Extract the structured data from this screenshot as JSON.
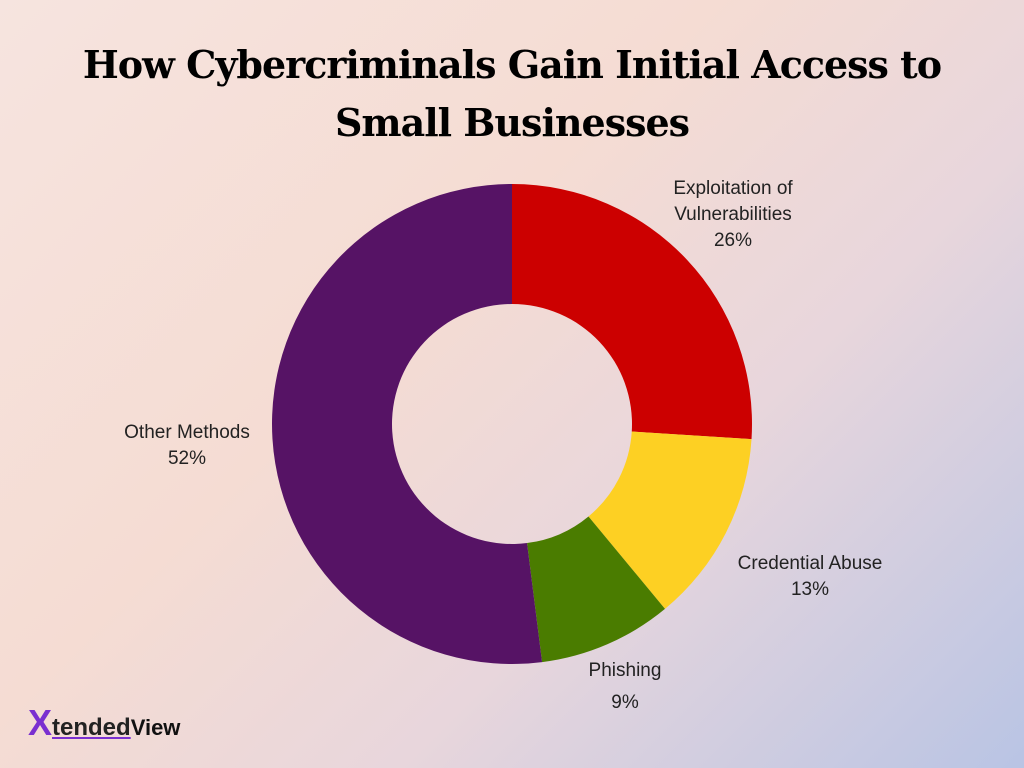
{
  "chart_data": {
    "type": "pie",
    "title": "How Cybercriminals Gain Initial Access to Small Businesses",
    "categories": [
      "Exploitation of Vulnerabilities",
      "Credential Abuse",
      "Phishing",
      "Other Methods"
    ],
    "values": [
      26,
      13,
      9,
      52
    ],
    "value_labels": [
      "26%",
      "13%",
      "9%",
      "52%"
    ],
    "colors": [
      "#cc0000",
      "#fdd023",
      "#4a7c00",
      "#561365"
    ],
    "donut": true
  },
  "logo": {
    "mark": "X",
    "text": "tended",
    "suffix": "View"
  }
}
